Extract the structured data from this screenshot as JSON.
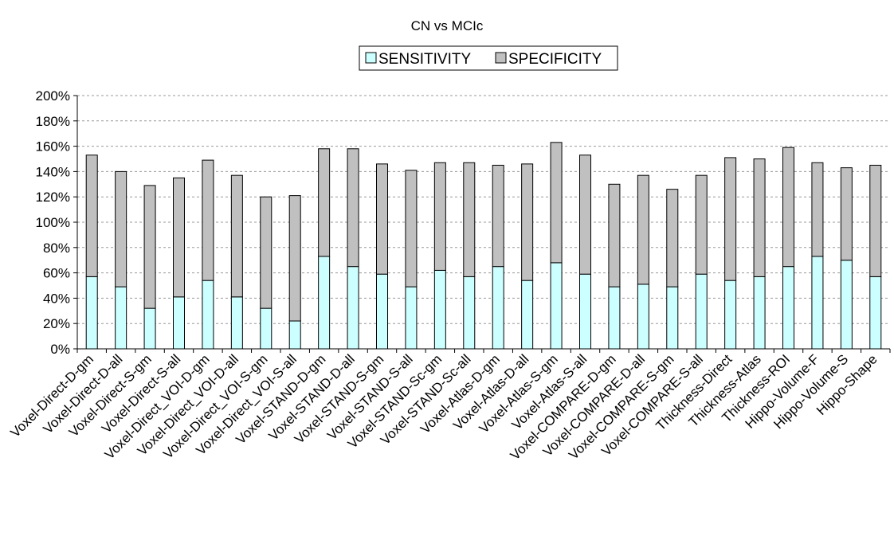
{
  "chart_data": {
    "type": "bar",
    "stacked": true,
    "title": "CN vs MCIc",
    "categories": [
      "Voxel-Direct-D-gm",
      "Voxel-Direct-D-all",
      "Voxel-Direct-S-gm",
      "Voxel-Direct-S-all",
      "Voxel-Direct_VOI-D-gm",
      "Voxel-Direct_VOI-D-all",
      "Voxel-Direct_VOI-S-gm",
      "Voxel-Direct_VOI-S-all",
      "Voxel-STAND-D-gm",
      "Voxel-STAND-D-all",
      "Voxel-STAND-S-gm",
      "Voxel-STAND-S-all",
      "Voxel-STAND-Sc-gm",
      "Voxel-STAND-Sc-all",
      "Voxel-Atlas-D-gm",
      "Voxel-Atlas-D-all",
      "Voxel-Atlas-S-gm",
      "Voxel-Atlas-S-all",
      "Voxel-COMPARE-D-gm",
      "Voxel-COMPARE-D-all",
      "Voxel-COMPARE-S-gm",
      "Voxel-COMPARE-S-all",
      "Thickness-Direct",
      "Thickness-Atlas",
      "Thickness-ROI",
      "Hippo-Volume-F",
      "Hippo-Volume-S",
      "Hippo-Shape"
    ],
    "series": [
      {
        "name": "SENSITIVITY",
        "color": "#ccffff",
        "values": [
          57,
          49,
          32,
          41,
          54,
          41,
          32,
          22,
          73,
          65,
          59,
          49,
          62,
          57,
          65,
          54,
          68,
          59,
          49,
          51,
          49,
          59,
          54,
          57,
          65,
          73,
          70,
          57
        ]
      },
      {
        "name": "SPECIFICITY",
        "color": "#c0c0c0",
        "values": [
          96,
          91,
          97,
          94,
          95,
          96,
          88,
          99,
          85,
          93,
          87,
          92,
          85,
          90,
          80,
          92,
          95,
          94,
          81,
          86,
          77,
          78,
          97,
          93,
          94,
          74,
          73,
          88
        ]
      }
    ],
    "y_tick_labels": [
      "0%",
      "20%",
      "40%",
      "60%",
      "80%",
      "100%",
      "120%",
      "140%",
      "160%",
      "180%",
      "200%"
    ],
    "ylim": [
      0,
      200
    ],
    "y_step": 20,
    "grid": true,
    "legend_position": "top-center",
    "colors": {
      "outline": "#000000",
      "grid": "#999999"
    }
  }
}
